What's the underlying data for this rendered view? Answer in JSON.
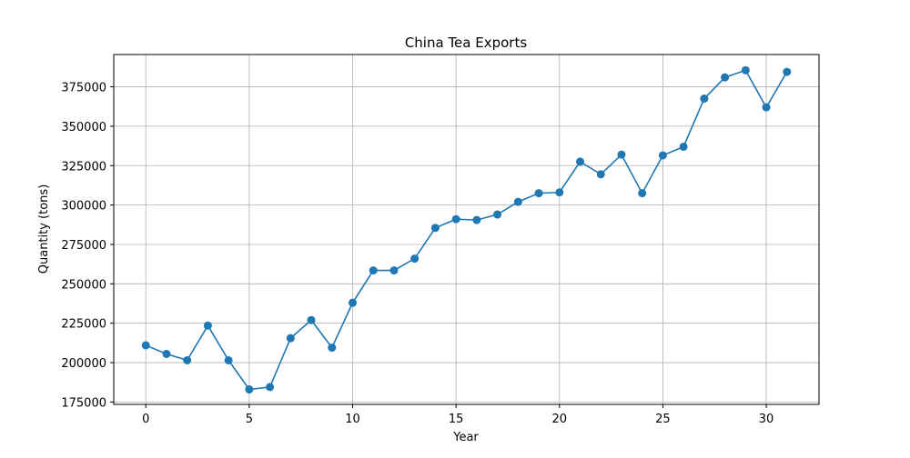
{
  "chart_data": {
    "type": "line",
    "title": "China Tea Exports",
    "xlabel": "Year",
    "ylabel": "Quantity (tons)",
    "xlim": [
      -1.55,
      32.55
    ],
    "ylim": [
      173500,
      395500
    ],
    "xticks": [
      0,
      5,
      10,
      15,
      20,
      25,
      30
    ],
    "yticks": [
      175000,
      200000,
      225000,
      250000,
      275000,
      300000,
      325000,
      350000,
      375000
    ],
    "grid": true,
    "colors": {
      "series": "#1f77b4"
    },
    "x": [
      0,
      1,
      2,
      3,
      4,
      5,
      6,
      7,
      8,
      9,
      10,
      11,
      12,
      13,
      14,
      15,
      16,
      17,
      18,
      19,
      20,
      21,
      22,
      23,
      24,
      25,
      26,
      27,
      28,
      29,
      30,
      31
    ],
    "series": [
      {
        "values": [
          211000,
          205500,
          201500,
          223500,
          201500,
          183000,
          184500,
          215500,
          227000,
          209500,
          238000,
          258500,
          258500,
          266000,
          285500,
          291000,
          290500,
          294000,
          302000,
          307500,
          308000,
          327500,
          319500,
          332000,
          307500,
          331500,
          337000,
          367500,
          381000,
          385500,
          362000,
          384500
        ]
      }
    ]
  }
}
